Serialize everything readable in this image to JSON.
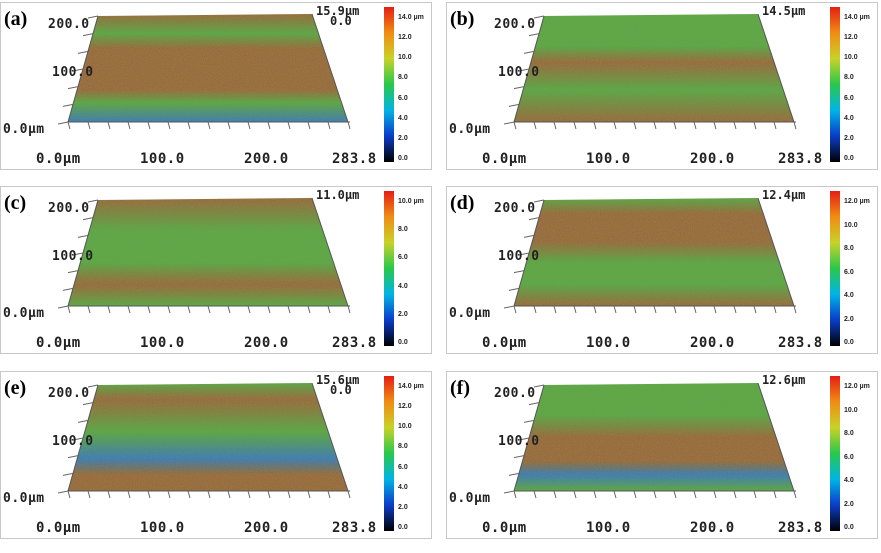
{
  "panels": [
    {
      "label": "(a)",
      "z_max": "15.9µm",
      "z_zero": "0.0",
      "y_ticks": [
        "200.0",
        "100.0",
        "0.0µm"
      ],
      "x_ticks": [
        "0.0µm",
        "100.0",
        "200.0",
        "283.8"
      ],
      "colorbar_ticks": [
        "14.0 µm",
        "12.0",
        "10.0",
        "8.0",
        "6.0",
        "4.0",
        "2.0",
        "0.0"
      ]
    },
    {
      "label": "(b)",
      "z_max": "14.5µm",
      "z_zero": "",
      "y_ticks": [
        "200.0",
        "100.0",
        "0.0µm"
      ],
      "x_ticks": [
        "0.0µm",
        "100.0",
        "200.0",
        "283.8"
      ],
      "colorbar_ticks": [
        "14.0 µm",
        "12.0",
        "10.0",
        "8.0",
        "6.0",
        "4.0",
        "2.0",
        "0.0"
      ]
    },
    {
      "label": "(c)",
      "z_max": "11.0µm",
      "z_zero": "",
      "y_ticks": [
        "200.0",
        "100.0",
        "0.0µm"
      ],
      "x_ticks": [
        "0.0µm",
        "100.0",
        "200.0",
        "283.8"
      ],
      "colorbar_ticks": [
        "10.0 µm",
        "8.0",
        "6.0",
        "4.0",
        "2.0",
        "0.0"
      ]
    },
    {
      "label": "(d)",
      "z_max": "12.4µm",
      "z_zero": "",
      "y_ticks": [
        "200.0",
        "100.0",
        "0.0µm"
      ],
      "x_ticks": [
        "0.0µm",
        "100.0",
        "200.0",
        "283.8"
      ],
      "colorbar_ticks": [
        "12.0 µm",
        "10.0",
        "8.0",
        "6.0",
        "4.0",
        "2.0",
        "0.0"
      ]
    },
    {
      "label": "(e)",
      "z_max": "15.6µm",
      "z_zero": "0.0",
      "y_ticks": [
        "200.0",
        "100.0",
        "0.0µm"
      ],
      "x_ticks": [
        "0.0µm",
        "100.0",
        "200.0",
        "283.8"
      ],
      "colorbar_ticks": [
        "14.0 µm",
        "12.0",
        "10.0",
        "8.0",
        "6.0",
        "4.0",
        "2.0",
        "0.0"
      ]
    },
    {
      "label": "(f)",
      "z_max": "12.6µm",
      "z_zero": "",
      "y_ticks": [
        "200.0",
        "100.0",
        "0.0µm"
      ],
      "x_ticks": [
        "0.0µm",
        "100.0",
        "200.0",
        "283.8"
      ],
      "colorbar_ticks": [
        "12.0 µm",
        "10.0",
        "8.0",
        "6.0",
        "4.0",
        "2.0",
        "0.0"
      ]
    }
  ],
  "colors": {
    "surface_brown": "#a0622a",
    "surface_green": "#5ea838",
    "surface_blue": "#3a78b8",
    "colorbar_stops": [
      "#000000",
      "#0a3cc8",
      "#00b4e6",
      "#28c84a",
      "#c8d228",
      "#f08c14",
      "#e61e14"
    ]
  }
}
